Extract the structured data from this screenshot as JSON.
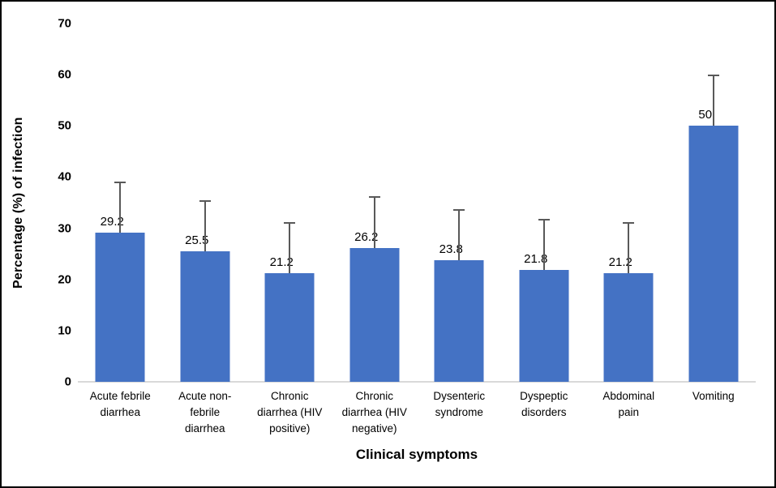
{
  "chart_data": {
    "type": "bar",
    "title": "",
    "xlabel": "Clinical symptoms",
    "ylabel": "Percentage (%) of infection",
    "categories": [
      "Acute febrile diarrhea",
      "Acute non-febrile diarrhea",
      "Chronic diarrhea (HIV positive)",
      "Chronic diarrhea (HIV negative)",
      "Dysenteric syndrome",
      "Dyspeptic disorders",
      "Abdominal pain",
      "Vomiting"
    ],
    "category_lines": [
      [
        "Acute febrile",
        "diarrhea"
      ],
      [
        "Acute non-",
        "febrile",
        "diarrhea"
      ],
      [
        "Chronic",
        "diarrhea (HIV",
        "positive)"
      ],
      [
        "Chronic",
        "diarrhea (HIV",
        "negative)"
      ],
      [
        "Dysenteric",
        "syndrome"
      ],
      [
        "Dyspeptic",
        "disorders"
      ],
      [
        "Abdominal",
        "pain"
      ],
      [
        "Vomiting"
      ]
    ],
    "values": [
      29.2,
      25.5,
      21.2,
      26.2,
      23.8,
      21.8,
      21.2,
      50
    ],
    "value_labels": [
      "29.2",
      "25.5",
      "21.2",
      "26.2",
      "23.8",
      "21.8",
      "21.2",
      "50"
    ],
    "error_bars": [
      10,
      10,
      10,
      10,
      10,
      10,
      10,
      10
    ],
    "ylim": [
      0,
      70
    ],
    "yticks": [
      0,
      10,
      20,
      30,
      40,
      50,
      60,
      70
    ],
    "grid": false,
    "legend": false,
    "bar_color": "#4472c4",
    "error_bar_color": "#595959",
    "axis_line_color": "#d9d9d9"
  }
}
